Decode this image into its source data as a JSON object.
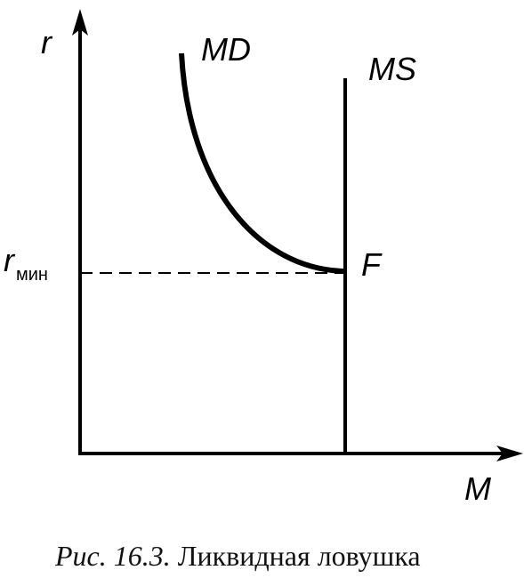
{
  "axes": {
    "y_label": "r",
    "x_label": "M"
  },
  "curves": {
    "md": "MD",
    "ms": "MS"
  },
  "point": "F",
  "level": {
    "symbol": "r",
    "subscript": "мин"
  },
  "caption": {
    "number": "Рис. 16.3.",
    "text": "Ликвидная ловушка"
  }
}
